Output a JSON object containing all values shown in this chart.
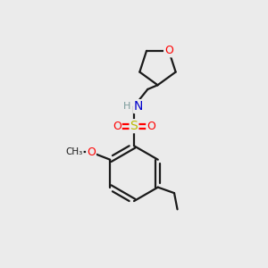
{
  "background_color": "#ebebeb",
  "bond_color": "#1a1a1a",
  "atom_colors": {
    "O": "#ff0000",
    "N": "#0000cc",
    "S": "#bbbb00",
    "C": "#1a1a1a",
    "H": "#7a9a9a"
  },
  "figsize": [
    3.0,
    3.0
  ],
  "dpi": 100,
  "lw": 1.6
}
